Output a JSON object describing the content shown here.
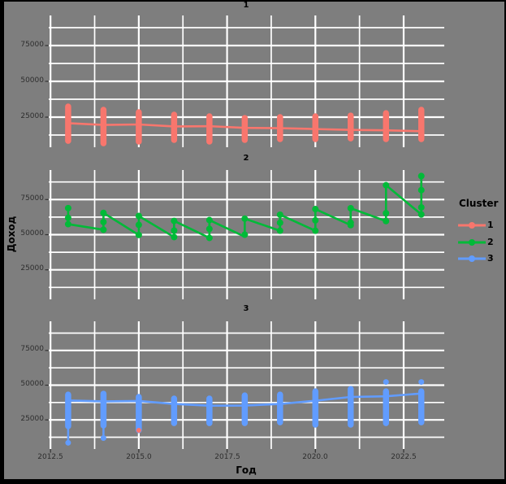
{
  "figure": {
    "background": "#000000",
    "canvas_color": "#7E7E7E",
    "grid_color": "#FFFFFF",
    "tick_mark_color": "#333333"
  },
  "chart_data": {
    "type": "scatter",
    "description": "Faceted scatter/strip plot with connecting lines, one row facet per cluster",
    "xlabel": "Год",
    "ylabel": "Доход",
    "xlim": [
      2012.45,
      2023.65
    ],
    "ylim": [
      4000,
      96000
    ],
    "x_tick_labels": [
      "2012.5",
      "2015.0",
      "2017.5",
      "2020.0",
      "2022.5"
    ],
    "y_tick_labels": [
      "75000",
      "50000",
      "25000"
    ],
    "grid": {
      "major_x": [
        2012.5,
        2015.0,
        2017.5,
        2020.0,
        2022.5
      ],
      "minor_x": [
        2013.75,
        2016.25,
        2018.75,
        2021.25
      ],
      "major_y": [
        25000,
        50000,
        75000
      ],
      "minor_y": [
        12500,
        37500,
        62500,
        87500
      ],
      "grid_on": true
    },
    "legend": {
      "title": "Cluster",
      "position": "right",
      "entries": [
        {
          "label": "1",
          "color": "#F8766D"
        },
        {
          "label": "2",
          "color": "#00BA38"
        },
        {
          "label": "3",
          "color": "#619CFF"
        }
      ]
    },
    "facets": [
      {
        "label": "1",
        "cluster": "1",
        "color": "#F8766D",
        "strips": [
          [
            2013,
            8500,
            32400
          ],
          [
            2014,
            6800,
            30100
          ],
          [
            2015,
            8000,
            28400
          ],
          [
            2016,
            9100,
            26700
          ],
          [
            2017,
            8000,
            25600
          ],
          [
            2018,
            9100,
            24400
          ],
          [
            2019,
            9700,
            25000
          ],
          [
            2020,
            9700,
            25600
          ],
          [
            2021,
            10200,
            26100
          ],
          [
            2022,
            9700,
            27800
          ],
          [
            2023,
            9700,
            30100
          ]
        ],
        "outlier_dots": [],
        "line": [
          [
            2013,
            20800
          ],
          [
            2014,
            19600
          ],
          [
            2015,
            19900
          ],
          [
            2016,
            18500
          ],
          [
            2017,
            18700
          ],
          [
            2018,
            17500
          ],
          [
            2019,
            17300
          ],
          [
            2020,
            16700
          ],
          [
            2021,
            16100
          ],
          [
            2022,
            15800
          ],
          [
            2023,
            15200
          ]
        ]
      },
      {
        "label": "2",
        "cluster": "2",
        "color": "#00BA38",
        "dots": [
          [
            2013,
            68900
          ],
          [
            2013,
            62000
          ],
          [
            2013,
            57500
          ],
          [
            2014,
            65500
          ],
          [
            2014,
            59000
          ],
          [
            2014,
            53500
          ],
          [
            2015,
            63300
          ],
          [
            2015,
            57000
          ],
          [
            2015,
            49800
          ],
          [
            2016,
            59800
          ],
          [
            2016,
            52900
          ],
          [
            2016,
            48300
          ],
          [
            2017,
            60400
          ],
          [
            2017,
            54100
          ],
          [
            2017,
            47700
          ],
          [
            2018,
            61400
          ],
          [
            2018,
            50000
          ],
          [
            2019,
            64200
          ],
          [
            2019,
            58500
          ],
          [
            2019,
            52800
          ],
          [
            2020,
            68200
          ],
          [
            2020,
            60200
          ],
          [
            2020,
            52800
          ],
          [
            2021,
            68800
          ],
          [
            2021,
            58500
          ],
          [
            2021,
            56800
          ],
          [
            2022,
            85200
          ],
          [
            2022,
            65300
          ],
          [
            2022,
            59700
          ],
          [
            2023,
            91700
          ],
          [
            2023,
            81700
          ],
          [
            2023,
            69400
          ],
          [
            2023,
            64400
          ]
        ],
        "line": [
          [
            2013,
            68900
          ],
          [
            2013,
            57500
          ],
          [
            2014,
            53500
          ],
          [
            2014,
            65500
          ],
          [
            2015,
            49800
          ],
          [
            2015,
            63300
          ],
          [
            2016,
            48300
          ],
          [
            2016,
            59800
          ],
          [
            2017,
            47700
          ],
          [
            2017,
            60400
          ],
          [
            2018,
            48600
          ],
          [
            2018,
            61400
          ],
          [
            2019,
            52800
          ],
          [
            2019,
            64200
          ],
          [
            2020,
            52800
          ],
          [
            2020,
            68200
          ],
          [
            2021,
            56800
          ],
          [
            2021,
            68800
          ],
          [
            2022,
            59700
          ],
          [
            2022,
            85200
          ],
          [
            2023,
            64400
          ],
          [
            2023,
            91700
          ]
        ]
      },
      {
        "label": "3",
        "cluster": "3",
        "color": "#619CFF",
        "strips": [
          [
            2013,
            20500,
            43200
          ],
          [
            2014,
            21000,
            43800
          ],
          [
            2015,
            17600,
            41500
          ],
          [
            2016,
            22700,
            40300
          ],
          [
            2017,
            22700,
            40300
          ],
          [
            2018,
            22700,
            42600
          ],
          [
            2019,
            23300,
            43200
          ],
          [
            2020,
            21600,
            45500
          ],
          [
            2021,
            21600,
            47200
          ],
          [
            2022,
            22700,
            45500
          ],
          [
            2023,
            23300,
            45500
          ]
        ],
        "outlier_dots": [
          {
            "x": 2013,
            "v": 8500,
            "stem_to": 20500
          },
          {
            "x": 2014,
            "v": 11900,
            "stem_to": 21000
          },
          {
            "x": 2022,
            "v": 52300,
            "stem_to": null
          },
          {
            "x": 2023,
            "v": 52300,
            "stem_to": null
          }
        ],
        "extra_dot": {
          "x": 2015,
          "v": 17500,
          "color": "#F8766D"
        },
        "line": [
          [
            2013,
            39000
          ],
          [
            2014,
            38300
          ],
          [
            2015,
            38600
          ],
          [
            2016,
            36500
          ],
          [
            2017,
            35200
          ],
          [
            2018,
            35300
          ],
          [
            2019,
            36500
          ],
          [
            2020,
            38800
          ],
          [
            2021,
            41500
          ],
          [
            2022,
            42000
          ],
          [
            2023,
            44000
          ]
        ]
      }
    ]
  }
}
